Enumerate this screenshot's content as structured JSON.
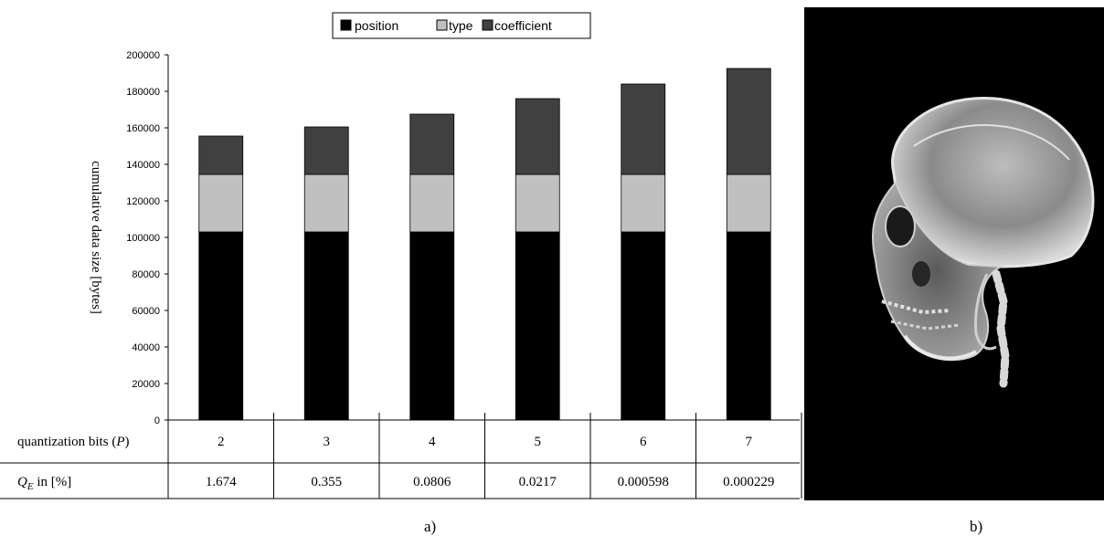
{
  "legend": [
    {
      "label": "position",
      "color": "#000000"
    },
    {
      "label": "type",
      "color": "#c0c0c0"
    },
    {
      "label": "coefficient",
      "color": "#404040"
    }
  ],
  "yaxis": {
    "label": "cumulative data size [bytes]",
    "ticks": [
      "0",
      "20000",
      "40000",
      "60000",
      "80000",
      "100000",
      "120000",
      "140000",
      "160000",
      "180000",
      "200000"
    ]
  },
  "table": {
    "row1_label_text": "quantization bits (",
    "row1_label_var": "P",
    "row1_label_close": ")",
    "row2_label_var": "Q",
    "row2_label_sub": "E",
    "row2_label_text": " in [%]",
    "row1": [
      "2",
      "3",
      "4",
      "5",
      "6",
      "7"
    ],
    "row2": [
      "1.674",
      "0.355",
      "0.0806",
      "0.0217",
      "0.000598",
      "0.000229"
    ]
  },
  "captions": {
    "a": "a)",
    "b": "b)"
  },
  "chart_data": {
    "type": "bar",
    "stacked": true,
    "categories": [
      "2",
      "3",
      "4",
      "5",
      "6",
      "7"
    ],
    "series": [
      {
        "name": "position",
        "values": [
          103000,
          103000,
          103000,
          103000,
          103000,
          103000
        ]
      },
      {
        "name": "type",
        "values": [
          31500,
          31500,
          31500,
          31500,
          31500,
          31500
        ]
      },
      {
        "name": "coefficient",
        "values": [
          21000,
          26000,
          33000,
          41500,
          49500,
          58000
        ]
      }
    ],
    "ylabel": "cumulative data size [bytes]",
    "xlabel": "quantization bits (P)",
    "ylim": [
      0,
      200000
    ],
    "legend_position": "top",
    "grid": false
  }
}
